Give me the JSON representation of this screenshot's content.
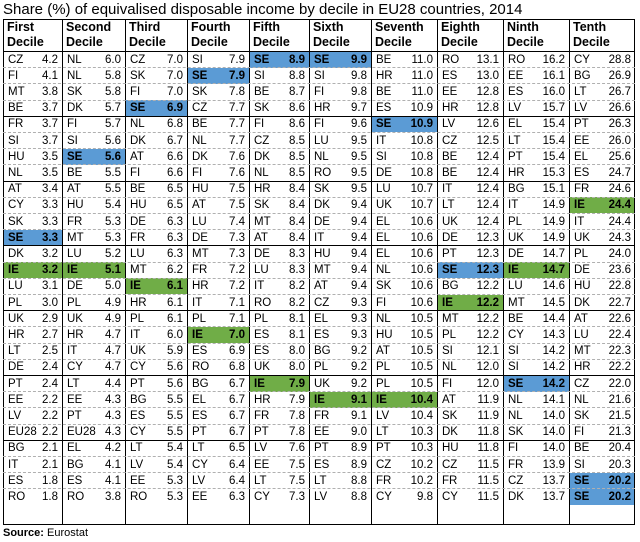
{
  "title": "Share (%) of equivalised disposable income by decile in EU28 countries, 2014",
  "source_label": "Source:",
  "source_value": "Eurostat",
  "colors": {
    "highlight_SE": "#5b9bd5",
    "highlight_IE": "#70ad47",
    "grid": "#000000"
  },
  "chart_data": {
    "type": "table",
    "title": "Share (%) of equivalised disposable income by decile in EU28 countries, 2014",
    "highlighted_countries": [
      "SE",
      "IE"
    ],
    "columns": [
      {
        "header": [
          "First",
          "Decile"
        ],
        "rows": [
          [
            "CZ",
            "4.2"
          ],
          [
            "FI",
            "4.1"
          ],
          [
            "MT",
            "3.8"
          ],
          [
            "BE",
            "3.7"
          ],
          [
            "FR",
            "3.7"
          ],
          [
            "SI",
            "3.7"
          ],
          [
            "HU",
            "3.5"
          ],
          [
            "NL",
            "3.5"
          ],
          [
            "AT",
            "3.4"
          ],
          [
            "CY",
            "3.3"
          ],
          [
            "SK",
            "3.3"
          ],
          [
            "SE",
            "3.3"
          ],
          [
            "DK",
            "3.2"
          ],
          [
            "IE",
            "3.2"
          ],
          [
            "LU",
            "3.1"
          ],
          [
            "PL",
            "3.0"
          ],
          [
            "UK",
            "2.9"
          ],
          [
            "HR",
            "2.7"
          ],
          [
            "LT",
            "2.5"
          ],
          [
            "DE",
            "2.4"
          ],
          [
            "PT",
            "2.4"
          ],
          [
            "EE",
            "2.2"
          ],
          [
            "LV",
            "2.2"
          ],
          [
            "EU28",
            "2.2"
          ],
          [
            "BG",
            "2.1"
          ],
          [
            "IT",
            "2.1"
          ],
          [
            "ES",
            "1.8"
          ],
          [
            "RO",
            "1.8"
          ]
        ]
      },
      {
        "header": [
          "Second",
          "Decile"
        ],
        "rows": [
          [
            "NL",
            "6.0"
          ],
          [
            "NL",
            "5.8"
          ],
          [
            "SK",
            "5.8"
          ],
          [
            "DK",
            "5.7"
          ],
          [
            "FI",
            "5.7"
          ],
          [
            "SI",
            "5.6"
          ],
          [
            "SE",
            "5.6"
          ],
          [
            "BE",
            "5.5"
          ],
          [
            "AT",
            "5.5"
          ],
          [
            "HU",
            "5.4"
          ],
          [
            "FR",
            "5.3"
          ],
          [
            "MT",
            "5.3"
          ],
          [
            "LU",
            "5.2"
          ],
          [
            "IE",
            "5.1"
          ],
          [
            "DE",
            "5.0"
          ],
          [
            "PL",
            "4.9"
          ],
          [
            "UK",
            "4.9"
          ],
          [
            "HR",
            "4.7"
          ],
          [
            "IT",
            "4.7"
          ],
          [
            "CY",
            "4.7"
          ],
          [
            "LT",
            "4.4"
          ],
          [
            "EE",
            "4.3"
          ],
          [
            "PT",
            "4.3"
          ],
          [
            "EU28",
            "4.3"
          ],
          [
            "EL",
            "4.2"
          ],
          [
            "BG",
            "4.1"
          ],
          [
            "ES",
            "4.1"
          ],
          [
            "RO",
            "3.8"
          ]
        ]
      },
      {
        "header": [
          "Third",
          "Decile"
        ],
        "rows": [
          [
            "CZ",
            "7.0"
          ],
          [
            "SK",
            "7.0"
          ],
          [
            "FI",
            "7.0"
          ],
          [
            "SE",
            "6.9"
          ],
          [
            "NL",
            "6.8"
          ],
          [
            "DK",
            "6.7"
          ],
          [
            "AT",
            "6.6"
          ],
          [
            "FI",
            "6.6"
          ],
          [
            "BE",
            "6.5"
          ],
          [
            "HU",
            "6.5"
          ],
          [
            "DE",
            "6.3"
          ],
          [
            "FR",
            "6.3"
          ],
          [
            "LU",
            "6.3"
          ],
          [
            "MT",
            "6.2"
          ],
          [
            "IE",
            "6.1"
          ],
          [
            "HR",
            "6.1"
          ],
          [
            "PL",
            "6.1"
          ],
          [
            "IT",
            "6.0"
          ],
          [
            "UK",
            "5.9"
          ],
          [
            "CY",
            "5.6"
          ],
          [
            "PT",
            "5.6"
          ],
          [
            "BG",
            "5.5"
          ],
          [
            "ES",
            "5.5"
          ],
          [
            "CY",
            "5.5"
          ],
          [
            "LT",
            "5.4"
          ],
          [
            "LV",
            "5.4"
          ],
          [
            "EE",
            "5.3"
          ],
          [
            "RO",
            "5.3"
          ]
        ]
      },
      {
        "header": [
          "Fourth",
          "Decile"
        ],
        "rows": [
          [
            "SI",
            "7.9"
          ],
          [
            "SE",
            "7.9"
          ],
          [
            "SK",
            "7.8"
          ],
          [
            "CZ",
            "7.7"
          ],
          [
            "BE",
            "7.7"
          ],
          [
            "NL",
            "7.7"
          ],
          [
            "DK",
            "7.6"
          ],
          [
            "FI",
            "7.6"
          ],
          [
            "HU",
            "7.5"
          ],
          [
            "AT",
            "7.5"
          ],
          [
            "LU",
            "7.4"
          ],
          [
            "DE",
            "7.3"
          ],
          [
            "MT",
            "7.3"
          ],
          [
            "FR",
            "7.2"
          ],
          [
            "HR",
            "7.2"
          ],
          [
            "IT",
            "7.1"
          ],
          [
            "PL",
            "7.1"
          ],
          [
            "IE",
            "7.0"
          ],
          [
            "ES",
            "6.9"
          ],
          [
            "RO",
            "6.8"
          ],
          [
            "BG",
            "6.7"
          ],
          [
            "EL",
            "6.7"
          ],
          [
            "ES",
            "6.7"
          ],
          [
            "PT",
            "6.7"
          ],
          [
            "LT",
            "6.5"
          ],
          [
            "CY",
            "6.4"
          ],
          [
            "LV",
            "6.4"
          ],
          [
            "EE",
            "6.3"
          ]
        ]
      },
      {
        "header": [
          "Fifth",
          "Decile"
        ],
        "rows": [
          [
            "SE",
            "8.9"
          ],
          [
            "SI",
            "8.8"
          ],
          [
            "BE",
            "8.7"
          ],
          [
            "SK",
            "8.6"
          ],
          [
            "FI",
            "8.6"
          ],
          [
            "CZ",
            "8.5"
          ],
          [
            "DK",
            "8.5"
          ],
          [
            "NL",
            "8.5"
          ],
          [
            "HR",
            "8.4"
          ],
          [
            "SK",
            "8.4"
          ],
          [
            "MT",
            "8.4"
          ],
          [
            "AT",
            "8.4"
          ],
          [
            "DE",
            "8.3"
          ],
          [
            "LU",
            "8.3"
          ],
          [
            "IT",
            "8.2"
          ],
          [
            "RO",
            "8.2"
          ],
          [
            "PL",
            "8.1"
          ],
          [
            "ES",
            "8.1"
          ],
          [
            "ES",
            "8.0"
          ],
          [
            "UK",
            "8.0"
          ],
          [
            "IE",
            "7.9"
          ],
          [
            "HR",
            "7.9"
          ],
          [
            "FR",
            "7.8"
          ],
          [
            "PT",
            "7.8"
          ],
          [
            "LV",
            "7.6"
          ],
          [
            "EE",
            "7.5"
          ],
          [
            "LT",
            "7.5"
          ],
          [
            "CY",
            "7.3"
          ]
        ]
      },
      {
        "header": [
          "Sixth",
          "Decile"
        ],
        "rows": [
          [
            "SE",
            "9.9"
          ],
          [
            "SI",
            "9.8"
          ],
          [
            "FI",
            "9.8"
          ],
          [
            "HR",
            "9.7"
          ],
          [
            "FI",
            "9.6"
          ],
          [
            "LU",
            "9.5"
          ],
          [
            "NL",
            "9.5"
          ],
          [
            "RO",
            "9.5"
          ],
          [
            "SK",
            "9.5"
          ],
          [
            "DK",
            "9.4"
          ],
          [
            "DE",
            "9.4"
          ],
          [
            "IT",
            "9.4"
          ],
          [
            "HU",
            "9.4"
          ],
          [
            "MT",
            "9.4"
          ],
          [
            "AT",
            "9.4"
          ],
          [
            "CZ",
            "9.3"
          ],
          [
            "EL",
            "9.3"
          ],
          [
            "ES",
            "9.3"
          ],
          [
            "BG",
            "9.2"
          ],
          [
            "PL",
            "9.2"
          ],
          [
            "UK",
            "9.2"
          ],
          [
            "IE",
            "9.1"
          ],
          [
            "FR",
            "9.1"
          ],
          [
            "EE",
            "9.0"
          ],
          [
            "PT",
            "8.9"
          ],
          [
            "ES",
            "8.9"
          ],
          [
            "LT",
            "8.8"
          ],
          [
            "LV",
            "8.8"
          ]
        ]
      },
      {
        "header": [
          "Seventh",
          "Decile"
        ],
        "rows": [
          [
            "BE",
            "11.0"
          ],
          [
            "HR",
            "11.0"
          ],
          [
            "BE",
            "11.0"
          ],
          [
            "ES",
            "10.9"
          ],
          [
            "SE",
            "10.9"
          ],
          [
            "IT",
            "10.8"
          ],
          [
            "SI",
            "10.8"
          ],
          [
            "DE",
            "10.8"
          ],
          [
            "LU",
            "10.7"
          ],
          [
            "UK",
            "10.7"
          ],
          [
            "EL",
            "10.6"
          ],
          [
            "EL",
            "10.6"
          ],
          [
            "EL",
            "10.6"
          ],
          [
            "NL",
            "10.6"
          ],
          [
            "SK",
            "10.6"
          ],
          [
            "FI",
            "10.6"
          ],
          [
            "NL",
            "10.5"
          ],
          [
            "HU",
            "10.5"
          ],
          [
            "AT",
            "10.5"
          ],
          [
            "PL",
            "10.5"
          ],
          [
            "PL",
            "10.5"
          ],
          [
            "IE",
            "10.4"
          ],
          [
            "LV",
            "10.4"
          ],
          [
            "LT",
            "10.3"
          ],
          [
            "PT",
            "10.3"
          ],
          [
            "CZ",
            "10.2"
          ],
          [
            "FR",
            "10.2"
          ],
          [
            "CY",
            "9.8"
          ]
        ]
      },
      {
        "header": [
          "Eighth",
          "Decile"
        ],
        "rows": [
          [
            "RO",
            "13.1"
          ],
          [
            "ES",
            "13.0"
          ],
          [
            "EE",
            "12.8"
          ],
          [
            "HR",
            "12.8"
          ],
          [
            "LV",
            "12.6"
          ],
          [
            "CZ",
            "12.5"
          ],
          [
            "BE",
            "12.4"
          ],
          [
            "BE",
            "12.4"
          ],
          [
            "IT",
            "12.4"
          ],
          [
            "LT",
            "12.4"
          ],
          [
            "UK",
            "12.4"
          ],
          [
            "DE",
            "12.3"
          ],
          [
            "PT",
            "12.3"
          ],
          [
            "SE",
            "12.3"
          ],
          [
            "BG",
            "12.2"
          ],
          [
            "IE",
            "12.2"
          ],
          [
            "MT",
            "12.2"
          ],
          [
            "PL",
            "12.2"
          ],
          [
            "SI",
            "12.1"
          ],
          [
            "NL",
            "12.0"
          ],
          [
            "FI",
            "12.0"
          ],
          [
            "AT",
            "11.9"
          ],
          [
            "SK",
            "11.9"
          ],
          [
            "DK",
            "11.8"
          ],
          [
            "HU",
            "11.8"
          ],
          [
            "CZ",
            "11.5"
          ],
          [
            "FR",
            "11.5"
          ],
          [
            "CY",
            "11.5"
          ]
        ]
      },
      {
        "header": [
          "Ninth",
          "Decile"
        ],
        "rows": [
          [
            "RO",
            "16.2"
          ],
          [
            "EE",
            "16.1"
          ],
          [
            "ES",
            "16.0"
          ],
          [
            "LV",
            "15.7"
          ],
          [
            "EL",
            "15.4"
          ],
          [
            "LT",
            "15.4"
          ],
          [
            "PT",
            "15.4"
          ],
          [
            "HR",
            "15.3"
          ],
          [
            "BG",
            "15.1"
          ],
          [
            "IT",
            "14.9"
          ],
          [
            "PL",
            "14.9"
          ],
          [
            "UK",
            "14.9"
          ],
          [
            "DE",
            "14.7"
          ],
          [
            "IE",
            "14.7"
          ],
          [
            "LU",
            "14.6"
          ],
          [
            "MT",
            "14.5"
          ],
          [
            "BE",
            "14.4"
          ],
          [
            "CY",
            "14.3"
          ],
          [
            "SI",
            "14.2"
          ],
          [
            "SI",
            "14.2"
          ],
          [
            "SE",
            "14.2"
          ],
          [
            "NL",
            "14.1"
          ],
          [
            "NL",
            "14.0"
          ],
          [
            "SK",
            "14.0"
          ],
          [
            "FI",
            "14.0"
          ],
          [
            "FR",
            "13.9"
          ],
          [
            "CZ",
            "13.7"
          ],
          [
            "DK",
            "13.7"
          ]
        ]
      },
      {
        "header": [
          "Tenth",
          "Decile"
        ],
        "rows": [
          [
            "CY",
            "28.8"
          ],
          [
            "BG",
            "26.9"
          ],
          [
            "LT",
            "26.7"
          ],
          [
            "LV",
            "26.6"
          ],
          [
            "PT",
            "26.3"
          ],
          [
            "EE",
            "26.0"
          ],
          [
            "EL",
            "25.6"
          ],
          [
            "ES",
            "24.7"
          ],
          [
            "FR",
            "24.6"
          ],
          [
            "IE",
            "24.4"
          ],
          [
            "IT",
            "24.4"
          ],
          [
            "UK",
            "24.3"
          ],
          [
            "PL",
            "24.0"
          ],
          [
            "DE",
            "23.6"
          ],
          [
            "HU",
            "22.8"
          ],
          [
            "DK",
            "22.7"
          ],
          [
            "AT",
            "22.6"
          ],
          [
            "LU",
            "22.4"
          ],
          [
            "MT",
            "22.3"
          ],
          [
            "HR",
            "22.2"
          ],
          [
            "CZ",
            "22.0"
          ],
          [
            "NL",
            "21.6"
          ],
          [
            "SK",
            "21.5"
          ],
          [
            "FI",
            "21.3"
          ],
          [
            "BE",
            "20.4"
          ],
          [
            "SI",
            "20.3"
          ],
          [
            "SE",
            "20.2"
          ],
          [
            "SE",
            "20.2"
          ]
        ]
      }
    ]
  }
}
